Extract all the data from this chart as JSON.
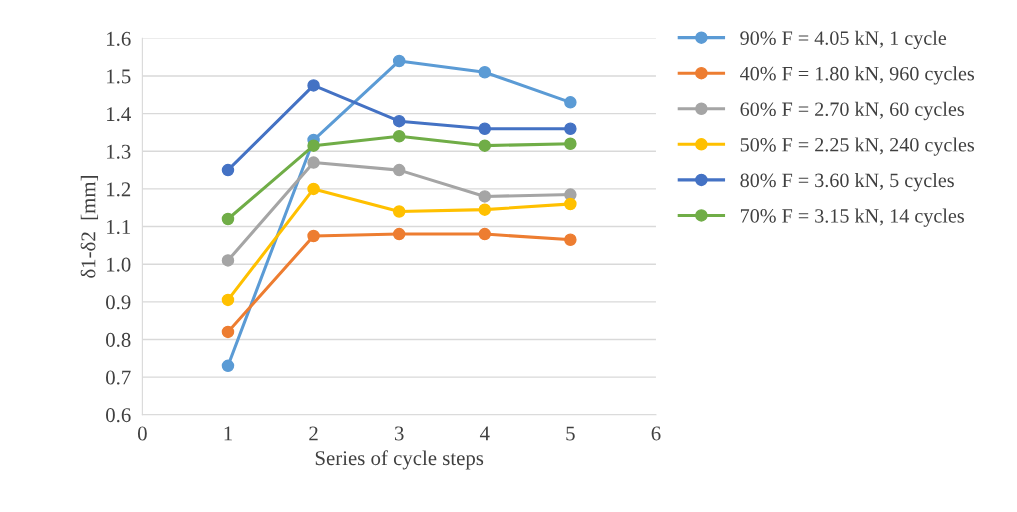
{
  "chart_data": {
    "type": "line",
    "xlabel": "Series of cycle steps",
    "ylabel": "δ1-δ2  [mm]",
    "xlim": [
      0,
      6
    ],
    "xticks": [
      0,
      1,
      2,
      3,
      4,
      5,
      6
    ],
    "ylim": [
      0.6,
      1.6
    ],
    "yticks": [
      {
        "value": 0.6,
        "label": "0.6"
      },
      {
        "value": 0.7,
        "label": "0.7"
      },
      {
        "value": 0.8,
        "label": "0.8"
      },
      {
        "value": 0.9,
        "label": "0.9"
      },
      {
        "value": 1.0,
        "label": "1.0"
      },
      {
        "value": 1.1,
        "label": "1.1"
      },
      {
        "value": 1.2,
        "label": "1.2"
      },
      {
        "value": 1.3,
        "label": "1.3"
      },
      {
        "value": 1.4,
        "label": "1.4"
      },
      {
        "value": 1.5,
        "label": "1.5"
      },
      {
        "value": 1.6,
        "label": "1.6"
      }
    ],
    "x": [
      1,
      2,
      3,
      4,
      5
    ],
    "grid": "y",
    "legend": "right",
    "marker": "circle",
    "line_style": "solid",
    "series": [
      {
        "name": "90% F = 4.05 kN, 1 cycle",
        "color": "#5b9bd5",
        "values": [
          0.73,
          1.33,
          1.54,
          1.51,
          1.43
        ]
      },
      {
        "name": "40% F = 1.80 kN, 960 cycles",
        "color": "#ed7d31",
        "values": [
          0.82,
          1.075,
          1.08,
          1.08,
          1.065
        ]
      },
      {
        "name": "60% F = 2.70 kN, 60 cycles",
        "color": "#a5a5a5",
        "values": [
          1.01,
          1.27,
          1.25,
          1.18,
          1.185
        ]
      },
      {
        "name": "50% F = 2.25 kN, 240 cycles",
        "color": "#ffc000",
        "values": [
          0.905,
          1.2,
          1.14,
          1.145,
          1.16
        ]
      },
      {
        "name": "80% F = 3.60 kN, 5 cycles",
        "color": "#4472c4",
        "values": [
          1.25,
          1.475,
          1.38,
          1.36,
          1.36
        ]
      },
      {
        "name": "70% F = 3.15 kN, 14 cycles",
        "color": "#70ad47",
        "values": [
          1.12,
          1.315,
          1.34,
          1.315,
          1.32
        ]
      }
    ]
  }
}
